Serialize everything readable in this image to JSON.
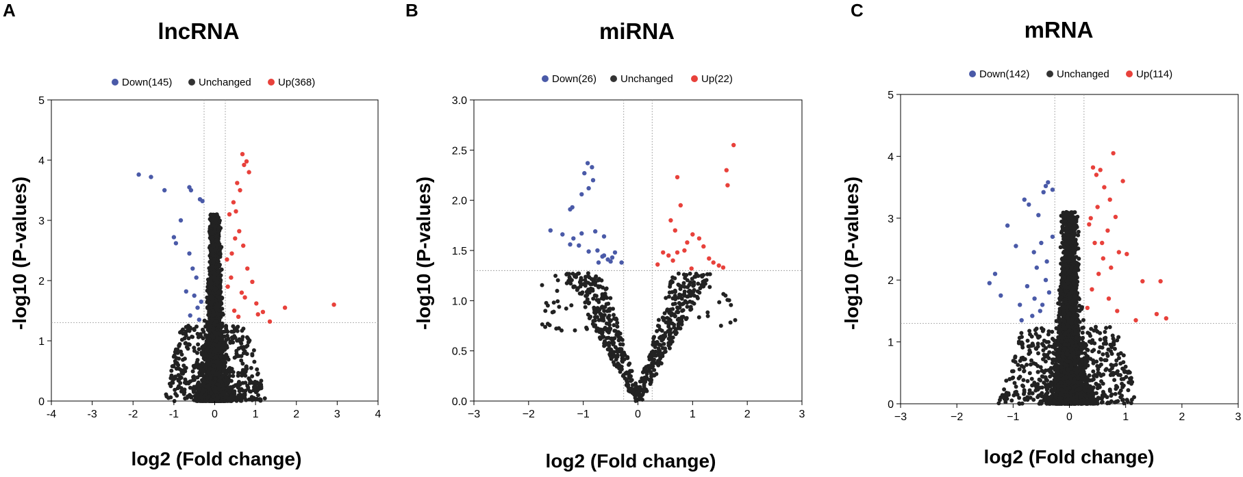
{
  "panels": [
    {
      "letter": "A"
    },
    {
      "letter": "B"
    },
    {
      "letter": "C"
    }
  ],
  "chart_data": [
    {
      "type": "scatter",
      "title": "lncRNA",
      "xlabel": "log2 (Fold change)",
      "ylabel": "-log10 (P-values)",
      "xlim": [
        -4,
        4
      ],
      "ylim": [
        0,
        5
      ],
      "xticks": [
        -4,
        -3,
        -2,
        -1,
        0,
        1,
        2,
        3,
        4
      ],
      "xtick_labels": [
        "-4",
        "-3",
        "-2",
        "-1",
        "0",
        "1",
        "2",
        "3",
        "4"
      ],
      "yticks": [
        0,
        1,
        2,
        3,
        4,
        5
      ],
      "ytick_labels": [
        "0",
        "1",
        "2",
        "3",
        "4",
        "5"
      ],
      "thresholds": {
        "fc": 0.26,
        "p": 1.3
      },
      "legend": [
        {
          "label": "Down(145)",
          "color": "#4a5aa8"
        },
        {
          "label": "Unchanged",
          "color": "#333333"
        },
        {
          "label": "Up(368)",
          "color": "#e8413b"
        }
      ],
      "series": [
        {
          "name": "Down",
          "color": "#4a5aa8",
          "x": [
            -1.86,
            -1.56,
            -1.23,
            -1.0,
            -0.95,
            -0.62,
            -0.58,
            -0.83,
            -0.36,
            -0.3,
            -0.62,
            -0.54,
            -0.45,
            -0.7,
            -0.5,
            -0.33,
            -0.42,
            -0.6,
            -0.38
          ],
          "y": [
            3.76,
            3.72,
            3.5,
            2.72,
            2.62,
            3.55,
            3.5,
            3.0,
            3.35,
            3.32,
            2.45,
            2.2,
            2.05,
            1.82,
            1.75,
            1.65,
            1.55,
            1.42,
            1.35
          ]
        },
        {
          "name": "Up",
          "color": "#e8413b",
          "x": [
            0.68,
            0.78,
            0.72,
            0.84,
            0.55,
            0.62,
            0.46,
            0.36,
            0.6,
            0.5,
            0.42,
            0.8,
            0.92,
            0.66,
            0.74,
            1.02,
            1.18,
            1.06,
            1.35,
            1.72,
            2.92,
            0.32,
            0.3,
            0.48,
            0.58,
            0.7,
            0.4,
            0.52
          ],
          "y": [
            4.1,
            3.98,
            3.92,
            3.8,
            3.62,
            3.5,
            3.3,
            3.1,
            2.82,
            2.7,
            2.45,
            2.2,
            1.98,
            1.8,
            1.72,
            1.62,
            1.48,
            1.44,
            1.32,
            1.55,
            1.6,
            1.9,
            2.35,
            1.5,
            1.4,
            2.58,
            2.05,
            3.15
          ]
        }
      ]
    },
    {
      "type": "scatter",
      "title": "miRNA",
      "xlabel": "log2 (Fold change)",
      "ylabel": "-log10 (P-values)",
      "xlim": [
        -3,
        3
      ],
      "ylim": [
        0,
        3.0
      ],
      "xticks": [
        -3,
        -2,
        -1,
        0,
        1,
        2,
        3
      ],
      "xtick_labels": [
        "−3",
        "−2",
        "−1",
        "0",
        "1",
        "2",
        "3"
      ],
      "yticks": [
        0,
        0.5,
        1.0,
        1.5,
        2.0,
        2.5,
        3.0
      ],
      "ytick_labels": [
        "0.0",
        "0.5",
        "1.0",
        "1.5",
        "2.0",
        "2.5",
        "3.0"
      ],
      "thresholds": {
        "fc": 0.26,
        "p": 1.3
      },
      "legend": [
        {
          "label": "Down(26)",
          "color": "#4a5aa8"
        },
        {
          "label": "Unchanged",
          "color": "#333333"
        },
        {
          "label": "Up(22)",
          "color": "#e8413b"
        }
      ],
      "series": [
        {
          "name": "Down",
          "color": "#4a5aa8",
          "x": [
            -0.92,
            -0.84,
            -0.98,
            -0.82,
            -0.9,
            -1.03,
            -1.2,
            -1.24,
            -1.03,
            -0.78,
            -1.6,
            -1.38,
            -1.18,
            -1.08,
            -0.62,
            -0.9,
            -0.74,
            -0.65,
            -0.55,
            -0.47,
            -0.42,
            -0.72,
            -0.5,
            -1.24,
            -0.62,
            -0.3
          ],
          "y": [
            2.37,
            2.33,
            2.27,
            2.2,
            2.12,
            2.06,
            1.93,
            1.91,
            1.67,
            1.69,
            1.7,
            1.66,
            1.62,
            1.55,
            1.64,
            1.49,
            1.5,
            1.44,
            1.41,
            1.43,
            1.48,
            1.38,
            1.39,
            1.56,
            1.45,
            1.38
          ]
        },
        {
          "name": "Up",
          "color": "#e8413b",
          "x": [
            1.75,
            1.62,
            1.64,
            0.72,
            0.78,
            0.6,
            0.68,
            1.0,
            1.12,
            0.9,
            1.2,
            0.85,
            0.72,
            0.46,
            0.56,
            1.38,
            1.48,
            1.56,
            0.98,
            0.64,
            1.3,
            0.36
          ],
          "y": [
            2.55,
            2.3,
            2.15,
            2.23,
            1.95,
            1.8,
            1.7,
            1.66,
            1.62,
            1.58,
            1.54,
            1.5,
            1.48,
            1.48,
            1.45,
            1.38,
            1.35,
            1.33,
            1.32,
            1.4,
            1.42,
            1.36
          ]
        }
      ]
    },
    {
      "type": "scatter",
      "title": "mRNA",
      "xlabel": "log2 (Fold change)",
      "ylabel": "-log10 (P-values)",
      "xlim": [
        -3,
        3
      ],
      "ylim": [
        0,
        5
      ],
      "xticks": [
        -3,
        -2,
        -1,
        0,
        1,
        2,
        3
      ],
      "xtick_labels": [
        "−3",
        "−2",
        "−1",
        "0",
        "1",
        "2",
        "3"
      ],
      "yticks": [
        0,
        1,
        2,
        3,
        4,
        5
      ],
      "ytick_labels": [
        "0",
        "1",
        "2",
        "3",
        "4",
        "5"
      ],
      "thresholds": {
        "fc": 0.26,
        "p": 1.3
      },
      "legend": [
        {
          "label": "Down(142)",
          "color": "#4a5aa8"
        },
        {
          "label": "Unchanged",
          "color": "#333333"
        },
        {
          "label": "Up(114)",
          "color": "#e8413b"
        }
      ],
      "series": [
        {
          "name": "Down",
          "color": "#4a5aa8",
          "x": [
            -0.38,
            -0.42,
            -0.3,
            -0.46,
            -0.8,
            -0.72,
            -0.55,
            -1.1,
            -0.95,
            -0.63,
            -1.32,
            -1.42,
            -1.22,
            -0.88,
            -0.5,
            -0.58,
            -0.42,
            -0.75,
            -0.62,
            -0.48,
            -0.36,
            -0.52,
            -0.66,
            -0.85,
            -0.4,
            -0.3
          ],
          "y": [
            3.58,
            3.52,
            3.46,
            3.42,
            3.3,
            3.22,
            3.05,
            2.88,
            2.55,
            2.45,
            2.1,
            1.95,
            1.75,
            1.6,
            2.6,
            2.2,
            2.0,
            1.9,
            1.7,
            1.6,
            1.8,
            1.5,
            1.42,
            1.35,
            2.3,
            2.7
          ]
        },
        {
          "name": "Up",
          "color": "#e8413b",
          "x": [
            0.78,
            0.42,
            0.55,
            0.48,
            0.95,
            0.62,
            0.72,
            0.5,
            0.38,
            0.82,
            0.68,
            0.58,
            0.88,
            1.02,
            0.74,
            1.3,
            1.62,
            1.55,
            1.72,
            1.18,
            0.35,
            0.45,
            0.6,
            0.52,
            0.4,
            0.7,
            0.32,
            0.85
          ],
          "y": [
            4.05,
            3.82,
            3.78,
            3.7,
            3.6,
            3.5,
            3.3,
            3.18,
            3.0,
            3.02,
            2.8,
            2.6,
            2.45,
            2.42,
            2.2,
            1.98,
            1.98,
            1.45,
            1.38,
            1.35,
            2.9,
            2.6,
            2.35,
            2.1,
            1.85,
            1.7,
            1.55,
            1.5
          ]
        }
      ]
    }
  ]
}
